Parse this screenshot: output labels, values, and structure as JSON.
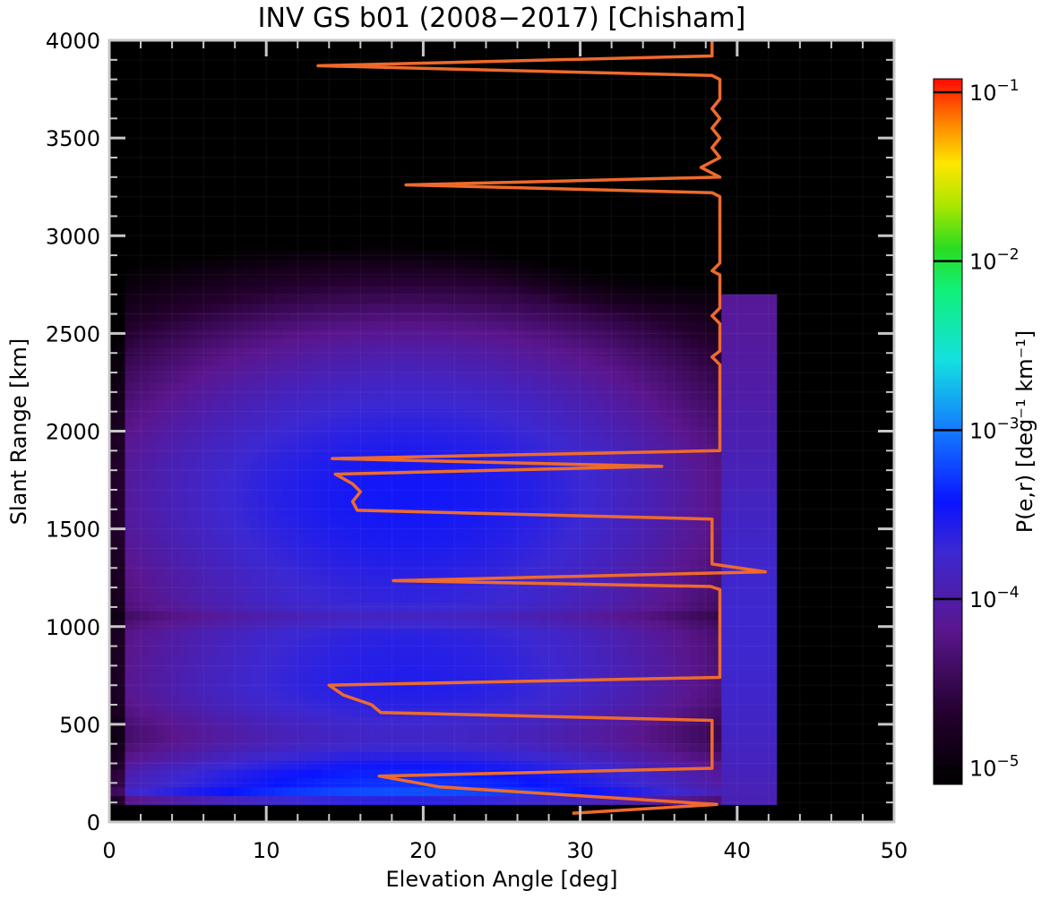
{
  "chart_data": {
    "type": "heatmap",
    "title": "INV GS b01 (2008−2017) [Chisham]",
    "xlabel": "Elevation Angle [deg]",
    "ylabel": "Slant Range [km]",
    "xlim": [
      0,
      50
    ],
    "ylim": [
      0,
      4000
    ],
    "x_ticks": [
      "0",
      "10",
      "20",
      "30",
      "40",
      "50"
    ],
    "y_ticks": [
      "0",
      "500",
      "1000",
      "1500",
      "2000",
      "2500",
      "3000",
      "3500",
      "4000"
    ],
    "colorbar": {
      "label": "P(e,r) [deg⁻¹ km⁻¹]",
      "scale": "log",
      "range": [
        8e-06,
        0.12
      ],
      "ticks": [
        {
          "value": 0.1,
          "base": "10",
          "exp": "−1"
        },
        {
          "value": 0.01,
          "base": "10",
          "exp": "−2"
        },
        {
          "value": 0.001,
          "base": "10",
          "exp": "−3"
        },
        {
          "value": 0.0001,
          "base": "10",
          "exp": "−4"
        },
        {
          "value": 1e-05,
          "base": "10",
          "exp": "−5"
        }
      ]
    },
    "heatmap_cells": {
      "elevation_step_deg": 0.5,
      "range_step_km": 45
    },
    "series": [
      {
        "type": "line",
        "color": "#ee6a2c",
        "points": [
          [
            29.5,
            45
          ],
          [
            38.7,
            90
          ],
          [
            21,
            180
          ],
          [
            17.2,
            235
          ],
          [
            38.4,
            275
          ],
          [
            38.4,
            520
          ],
          [
            17.3,
            560
          ],
          [
            16.7,
            600
          ],
          [
            14.9,
            650
          ],
          [
            14,
            700
          ],
          [
            38.9,
            740
          ],
          [
            38.9,
            1190
          ],
          [
            38.3,
            1205
          ],
          [
            18.1,
            1235
          ],
          [
            41.8,
            1280
          ],
          [
            38.4,
            1320
          ],
          [
            38.4,
            1550
          ],
          [
            15.8,
            1595
          ],
          [
            15.5,
            1640
          ],
          [
            16.0,
            1690
          ],
          [
            15.5,
            1730
          ],
          [
            14.4,
            1780
          ],
          [
            35.2,
            1820
          ],
          [
            14.2,
            1860
          ],
          [
            38.9,
            1900
          ],
          [
            38.9,
            2340
          ],
          [
            38.4,
            2380
          ],
          [
            38.9,
            2410
          ],
          [
            38.9,
            2550
          ],
          [
            38.4,
            2590
          ],
          [
            38.9,
            2630
          ],
          [
            38.9,
            2800
          ],
          [
            38.4,
            2820
          ],
          [
            38.9,
            2860
          ],
          [
            38.9,
            3200
          ],
          [
            38.4,
            3220
          ],
          [
            18.9,
            3260
          ],
          [
            38.9,
            3300
          ],
          [
            37.7,
            3350
          ],
          [
            38.9,
            3400
          ],
          [
            38.4,
            3450
          ],
          [
            38.9,
            3500
          ],
          [
            38.4,
            3550
          ],
          [
            38.9,
            3600
          ],
          [
            38.4,
            3650
          ],
          [
            38.9,
            3700
          ],
          [
            38.9,
            3800
          ],
          [
            38.4,
            3820
          ],
          [
            13.3,
            3870
          ],
          [
            38.4,
            3920
          ],
          [
            38.4,
            4000
          ]
        ]
      }
    ]
  }
}
